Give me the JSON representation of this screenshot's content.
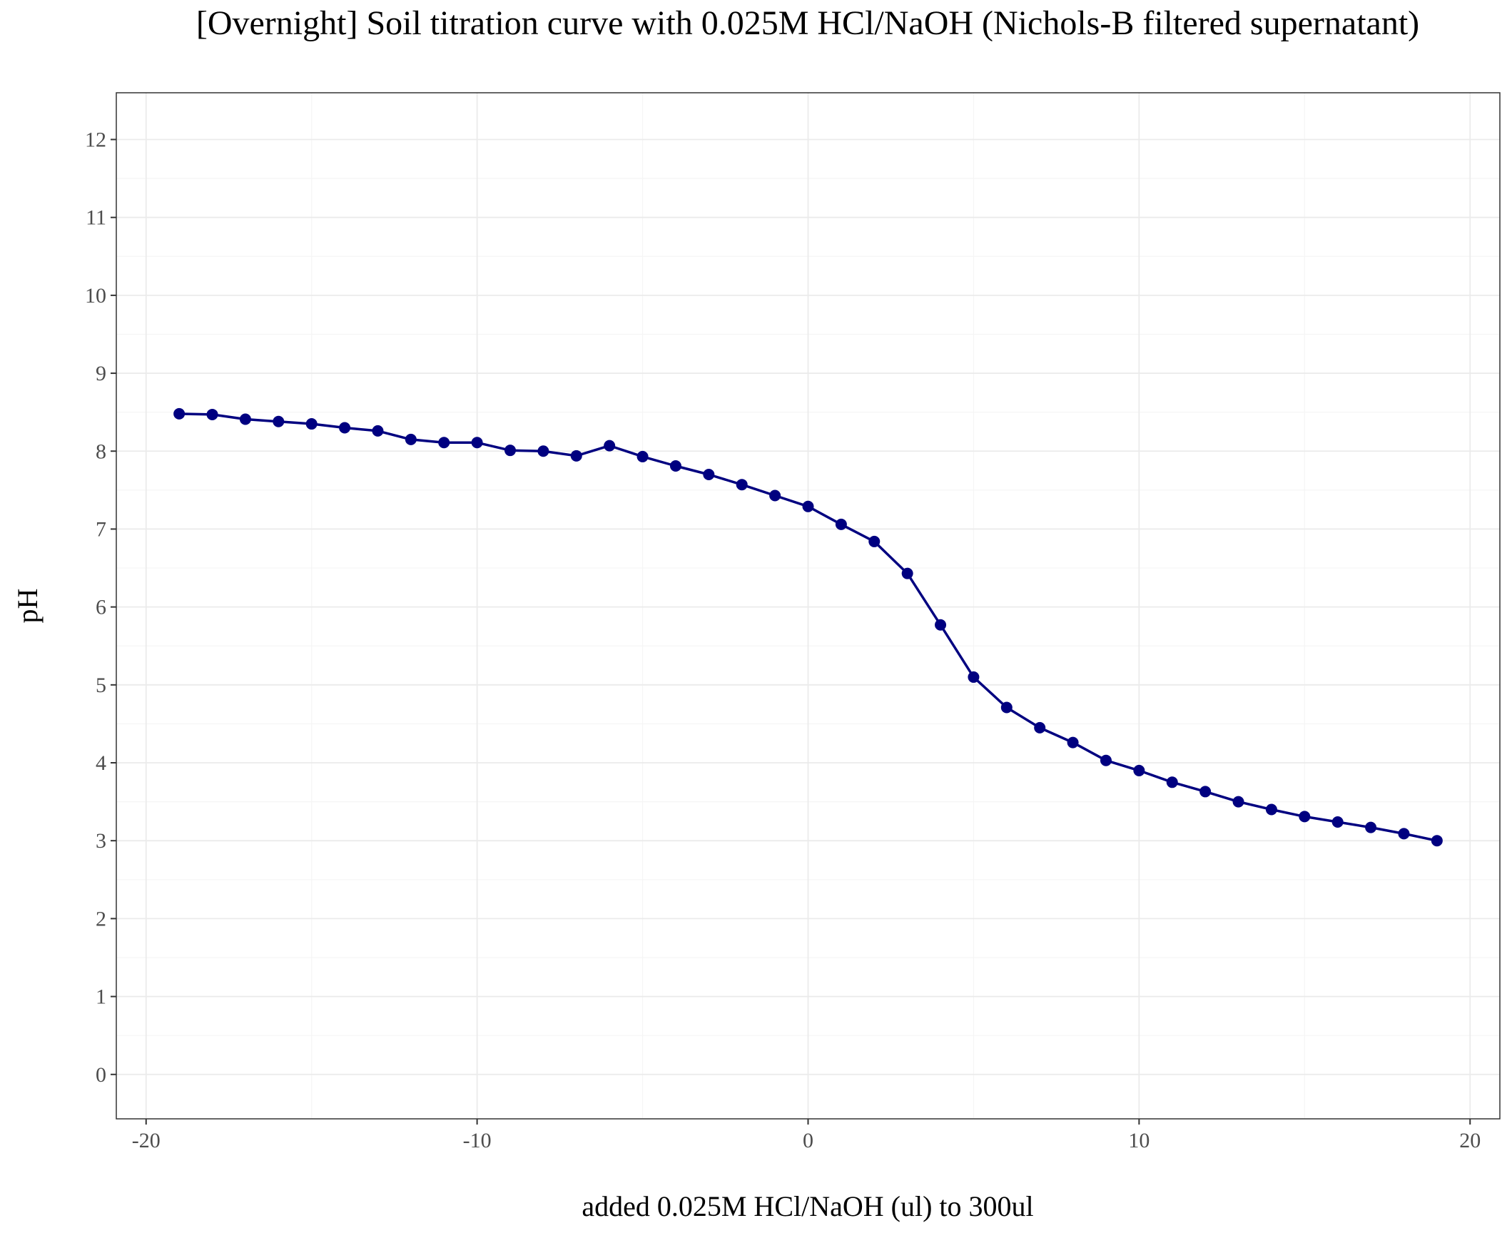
{
  "colors": {
    "series": "#000080",
    "panel_border": "#333333",
    "grid_major": "#ebebeb",
    "grid_minor": "#f5f5f5",
    "tick_mark": "#333333",
    "tick_label": "#4d4d4d",
    "text": "#000000"
  },
  "chart_data": {
    "type": "line",
    "title": "[Overnight] Soil titration curve with 0.025M HCl/NaOH (Nichols-B filtered supernatant)",
    "xlabel": "added 0.025M HCl/NaOH (ul) to 300ul",
    "ylabel": "pH",
    "xlim": [
      -20.9,
      20.9
    ],
    "ylim": [
      -0.57,
      12.6
    ],
    "x_ticks": [
      -20,
      -10,
      0,
      10,
      20
    ],
    "x_tick_labels": [
      "-20",
      "-10",
      "0",
      "10",
      "20"
    ],
    "y_ticks": [
      0,
      1,
      2,
      3,
      4,
      5,
      6,
      7,
      8,
      9,
      10,
      11,
      12
    ],
    "y_tick_labels": [
      "0",
      "1",
      "2",
      "3",
      "4",
      "5",
      "6",
      "7",
      "8",
      "9",
      "10",
      "11",
      "12"
    ],
    "grid": true,
    "legend": "none",
    "markers": true,
    "series": [
      {
        "x": [
          -19,
          -18,
          -17,
          -16,
          -15,
          -14,
          -13,
          -12,
          -11,
          -10,
          -9,
          -8,
          -7,
          -6,
          -5,
          -4,
          -3,
          -2,
          -1,
          0,
          1,
          2,
          3,
          4,
          5,
          6,
          7,
          8,
          9,
          10,
          11,
          12,
          13,
          14,
          15,
          16,
          17,
          18,
          19
        ],
        "y": [
          8.48,
          8.47,
          8.41,
          8.38,
          8.35,
          8.3,
          8.26,
          8.15,
          8.11,
          8.11,
          8.01,
          8.0,
          7.94,
          8.07,
          7.93,
          7.81,
          7.7,
          7.57,
          7.43,
          7.29,
          7.06,
          6.84,
          6.43,
          5.77,
          5.1,
          4.71,
          4.45,
          4.26,
          4.03,
          3.9,
          3.75,
          3.63,
          3.5,
          3.4,
          3.31,
          3.24,
          3.17,
          3.09,
          3.0
        ]
      }
    ]
  }
}
